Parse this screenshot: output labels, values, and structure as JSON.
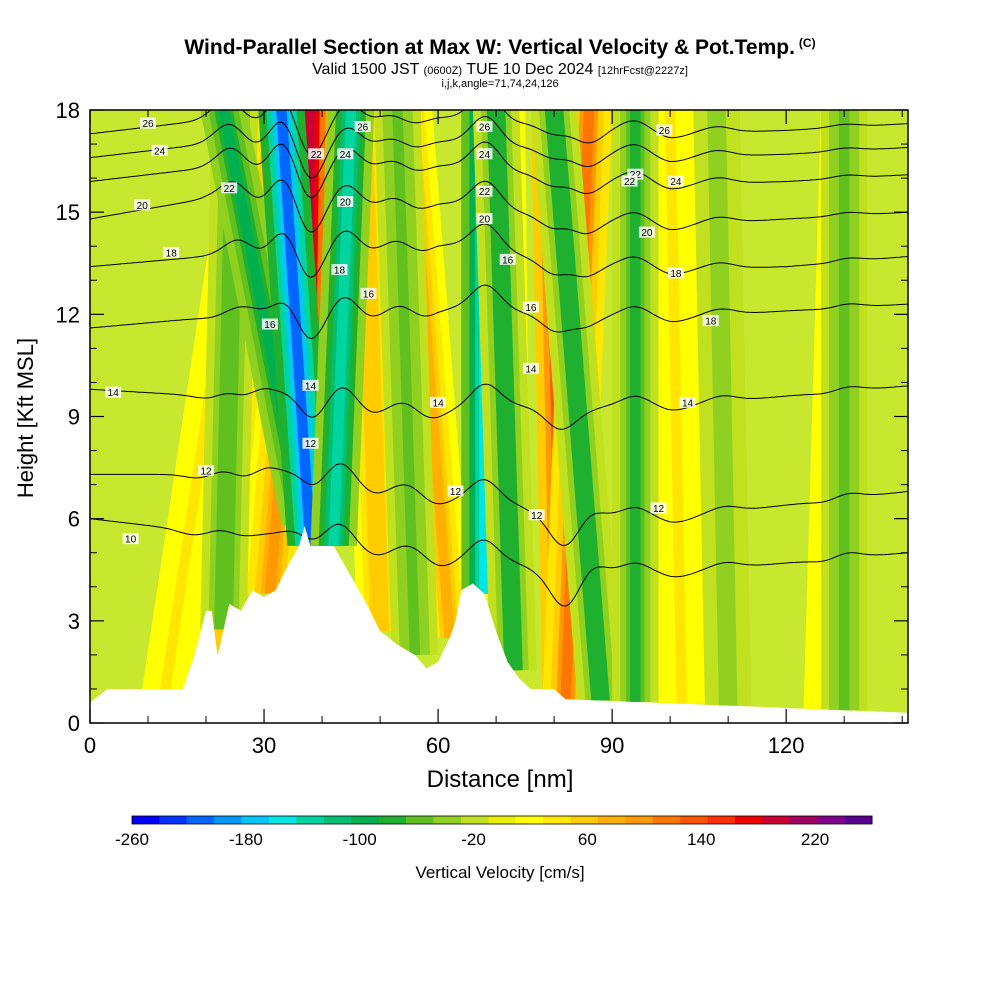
{
  "header": {
    "title": "Wind-Parallel Section at Max W: Vertical Velocity & Pot.Temp.",
    "title_suffix": "(C)",
    "subtitle_a": "Valid 1500 JST",
    "subtitle_b": "(0600Z)",
    "subtitle_c": "TUE 10 Dec 2024",
    "subtitle_d": "[12hrFcst@2227z]",
    "params": "i,j,k,angle=71,74,24,126"
  },
  "chart_data": {
    "type": "heatmap",
    "xlabel": "Distance [nm]",
    "ylabel": "Height [Kft MSL]",
    "xlim": [
      0,
      141
    ],
    "ylim": [
      0,
      18
    ],
    "x_ticks": [
      0,
      30,
      60,
      90,
      120
    ],
    "y_ticks": [
      0,
      3,
      6,
      9,
      12,
      15,
      18
    ],
    "grid": false,
    "colorbar": {
      "label": "Vertical Velocity [cm/s]",
      "orientation": "horizontal",
      "position": "bottom",
      "tick_values": [
        -260,
        -180,
        -100,
        -20,
        60,
        140,
        220
      ],
      "range": [
        -260,
        260
      ],
      "colors": [
        "#0000ff",
        "#0033ff",
        "#0066ff",
        "#0099ff",
        "#00c8ff",
        "#00e6e6",
        "#00d4a0",
        "#00c070",
        "#00b050",
        "#20b030",
        "#60c020",
        "#90d020",
        "#c0e020",
        "#e8f000",
        "#ffff00",
        "#ffe600",
        "#ffcc00",
        "#ffb000",
        "#ff9900",
        "#ff7700",
        "#ff5500",
        "#ff3000",
        "#ee0000",
        "#cc0030",
        "#a00060",
        "#800090",
        "#5a0090"
      ]
    },
    "terrain": [
      [
        0,
        0.6
      ],
      [
        3,
        1.0
      ],
      [
        9,
        1.0
      ],
      [
        16,
        1.0
      ],
      [
        18,
        2.0
      ],
      [
        20,
        3.3
      ],
      [
        21,
        3.3
      ],
      [
        22,
        2.0
      ],
      [
        24,
        3.5
      ],
      [
        26,
        3.3
      ],
      [
        28,
        3.9
      ],
      [
        30,
        3.7
      ],
      [
        32,
        3.9
      ],
      [
        34,
        4.6
      ],
      [
        36,
        5.2
      ],
      [
        37,
        5.8
      ],
      [
        38,
        5.2
      ],
      [
        42,
        5.2
      ],
      [
        44,
        4.6
      ],
      [
        46,
        4.0
      ],
      [
        48,
        3.4
      ],
      [
        50,
        2.7
      ],
      [
        53,
        2.3
      ],
      [
        56,
        2.0
      ],
      [
        58,
        1.6
      ],
      [
        60,
        1.8
      ],
      [
        62,
        2.5
      ],
      [
        63,
        3.0
      ],
      [
        64,
        3.9
      ],
      [
        66,
        4.1
      ],
      [
        68,
        3.8
      ],
      [
        70,
        2.7
      ],
      [
        72,
        1.8
      ],
      [
        74,
        1.3
      ],
      [
        76,
        1.0
      ],
      [
        80,
        1.0
      ],
      [
        82,
        0.7
      ],
      [
        141,
        0.3
      ]
    ],
    "updrafts": [
      {
        "x_bottom": 13,
        "x_top": 28,
        "w": 30
      },
      {
        "x_bottom": 22,
        "x_top": 31,
        "w": 50
      },
      {
        "x_bottom": 31,
        "x_top": 38,
        "w": 90
      },
      {
        "x_bottom": 37,
        "x_top": 38,
        "w": 200
      },
      {
        "x_bottom": 50,
        "x_top": 47,
        "w": 60
      },
      {
        "x_bottom": 62,
        "x_top": 55,
        "w": 70
      },
      {
        "x_bottom": 72,
        "x_top": 71,
        "w": 60
      },
      {
        "x_bottom": 82,
        "x_top": 80,
        "w": 150
      },
      {
        "x_bottom": 82,
        "x_top": 86,
        "w": 110
      },
      {
        "x_bottom": 102,
        "x_top": 100,
        "w": 30
      },
      {
        "x_bottom": 127,
        "x_top": 130,
        "w": 30
      }
    ],
    "downdrafts": [
      {
        "x_bottom": 23,
        "x_top": 25,
        "w": -60
      },
      {
        "x_bottom": 37,
        "x_top": 23,
        "w": -90
      },
      {
        "x_bottom": 38,
        "x_top": 33,
        "w": -210
      },
      {
        "x_bottom": 42,
        "x_top": 45,
        "w": -130
      },
      {
        "x_bottom": 56,
        "x_top": 53,
        "w": -50
      },
      {
        "x_bottom": 68,
        "x_top": 68,
        "w": -160
      },
      {
        "x_bottom": 73,
        "x_top": 70,
        "w": -80
      },
      {
        "x_bottom": 88,
        "x_top": 80,
        "w": -80
      },
      {
        "x_bottom": 94,
        "x_top": 94,
        "w": -70
      },
      {
        "x_bottom": 110,
        "x_top": 108,
        "w": -40
      },
      {
        "x_bottom": 130,
        "x_top": 130,
        "w": -50
      }
    ],
    "theta_contours": [
      {
        "value": 10,
        "label_x": 7,
        "label_y": 5.4,
        "levels": [
          [
            0,
            6.0
          ],
          [
            20,
            5.6
          ],
          [
            40,
            5.4
          ],
          [
            60,
            4.9
          ],
          [
            80,
            4.4
          ],
          [
            100,
            4.4
          ],
          [
            120,
            4.7
          ],
          [
            141,
            5.0
          ]
        ]
      },
      {
        "value": 12,
        "label_x": 20,
        "label_y": 7.4,
        "levels": [
          [
            0,
            7.3
          ],
          [
            20,
            7.3
          ],
          [
            40,
            7.2
          ],
          [
            60,
            6.7
          ],
          [
            80,
            6.1
          ],
          [
            100,
            6.0
          ],
          [
            120,
            6.4
          ],
          [
            141,
            6.8
          ]
        ]
      },
      {
        "value": 14,
        "label_x": 4,
        "label_y": 9.7,
        "levels": [
          [
            0,
            9.8
          ],
          [
            20,
            9.6
          ],
          [
            40,
            9.4
          ],
          [
            60,
            9.2
          ],
          [
            80,
            9.3
          ],
          [
            100,
            9.3
          ],
          [
            120,
            9.6
          ],
          [
            141,
            9.9
          ]
        ]
      },
      {
        "value": 16,
        "label_x": 31,
        "label_y": 11.7,
        "levels": [
          [
            0,
            11.6
          ],
          [
            20,
            11.9
          ],
          [
            40,
            12.0
          ],
          [
            60,
            12.2
          ],
          [
            80,
            12.0
          ],
          [
            100,
            11.9
          ],
          [
            120,
            12.1
          ],
          [
            141,
            12.3
          ]
        ]
      },
      {
        "value": 18,
        "label_x": 14,
        "label_y": 13.8,
        "levels": [
          [
            0,
            13.4
          ],
          [
            20,
            13.7
          ],
          [
            40,
            14.0
          ],
          [
            60,
            14.1
          ],
          [
            80,
            13.6
          ],
          [
            100,
            13.3
          ],
          [
            120,
            13.4
          ],
          [
            141,
            13.7
          ]
        ]
      },
      {
        "value": 20,
        "label_x": 9,
        "label_y": 15.2,
        "levels": [
          [
            0,
            14.8
          ],
          [
            20,
            15.4
          ],
          [
            40,
            15.4
          ],
          [
            60,
            15.3
          ],
          [
            80,
            14.9
          ],
          [
            100,
            14.6
          ],
          [
            120,
            14.8
          ],
          [
            141,
            15.0
          ]
        ]
      },
      {
        "value": 22,
        "label_x": 94,
        "label_y": 16.1,
        "levels": [
          [
            0,
            15.9
          ],
          [
            20,
            16.3
          ],
          [
            40,
            16.5
          ],
          [
            60,
            16.4
          ],
          [
            80,
            16.1
          ],
          [
            100,
            15.8
          ],
          [
            120,
            15.9
          ],
          [
            141,
            16.1
          ]
        ]
      },
      {
        "value": 24,
        "label_x": 12,
        "label_y": 16.8,
        "levels": [
          [
            0,
            16.6
          ],
          [
            20,
            17.0
          ],
          [
            40,
            17.1
          ],
          [
            60,
            17.1
          ],
          [
            80,
            16.9
          ],
          [
            100,
            16.6
          ],
          [
            120,
            16.7
          ],
          [
            141,
            16.9
          ]
        ]
      },
      {
        "value": 26,
        "label_x": 10,
        "label_y": 17.6,
        "levels": [
          [
            0,
            17.3
          ],
          [
            20,
            17.7
          ],
          [
            40,
            17.8
          ],
          [
            60,
            17.8
          ],
          [
            80,
            17.6
          ],
          [
            100,
            17.3
          ],
          [
            120,
            17.4
          ],
          [
            141,
            17.6
          ]
        ]
      }
    ],
    "contour_extra_labels": [
      {
        "value": "22",
        "x": 24,
        "y": 15.7
      },
      {
        "value": "22",
        "x": 39,
        "y": 16.7
      },
      {
        "value": "24",
        "x": 44,
        "y": 16.7
      },
      {
        "value": "26",
        "x": 47,
        "y": 17.5
      },
      {
        "value": "26",
        "x": 68,
        "y": 17.5
      },
      {
        "value": "24",
        "x": 68,
        "y": 16.7
      },
      {
        "value": "22",
        "x": 68,
        "y": 15.6
      },
      {
        "value": "20",
        "x": 68,
        "y": 14.8
      },
      {
        "value": "16",
        "x": 72,
        "y": 13.6
      },
      {
        "value": "20",
        "x": 44,
        "y": 15.3
      },
      {
        "value": "18",
        "x": 43,
        "y": 13.3
      },
      {
        "value": "16",
        "x": 48,
        "y": 12.6
      },
      {
        "value": "16",
        "x": 76,
        "y": 12.2
      },
      {
        "value": "14",
        "x": 38,
        "y": 9.9
      },
      {
        "value": "14",
        "x": 60,
        "y": 9.4
      },
      {
        "value": "14",
        "x": 76,
        "y": 10.4
      },
      {
        "value": "14",
        "x": 103,
        "y": 9.4
      },
      {
        "value": "12",
        "x": 38,
        "y": 8.2
      },
      {
        "value": "12",
        "x": 63,
        "y": 6.8
      },
      {
        "value": "12",
        "x": 77,
        "y": 6.1
      },
      {
        "value": "12",
        "x": 98,
        "y": 6.3
      },
      {
        "value": "22",
        "x": 93,
        "y": 15.9
      },
      {
        "value": "24",
        "x": 101,
        "y": 15.9
      },
      {
        "value": "26",
        "x": 99,
        "y": 17.4
      },
      {
        "value": "20",
        "x": 96,
        "y": 14.4
      },
      {
        "value": "18",
        "x": 101,
        "y": 13.2
      },
      {
        "value": "18",
        "x": 107,
        "y": 11.8
      }
    ]
  }
}
